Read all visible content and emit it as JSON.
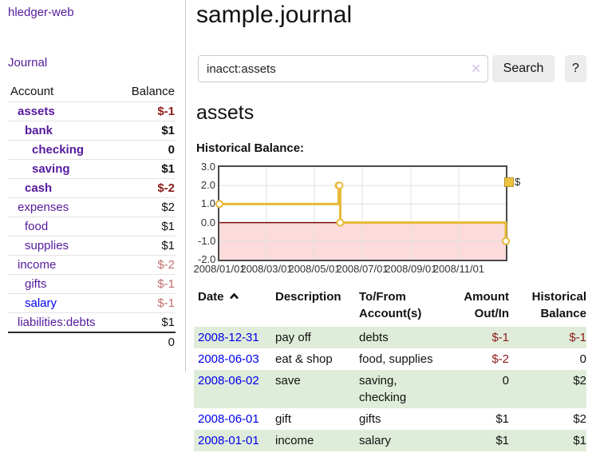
{
  "colors": {
    "link_purple": "#551a9b",
    "link_blue": "#0000ee",
    "negative_dark": "#8c1b1b",
    "negative_light": "#c06e6e",
    "row_green": "#dfecd9",
    "series_gold": "#e7ba37",
    "chart_negative_region": "#fbdbdb",
    "chart_zero_line": "#7d0b0b",
    "button_gray": "#ececec"
  },
  "sidebar": {
    "brand": "hledger-web",
    "journal_link": "Journal",
    "accounts_table": {
      "headers": {
        "account": "Account",
        "balance": "Balance"
      },
      "rows": [
        {
          "account": "assets",
          "indent": 1,
          "bold": true,
          "link": "purple",
          "balance": "$-1",
          "balance_style": "neg-dark"
        },
        {
          "account": "bank",
          "indent": 2,
          "bold": true,
          "link": "purple",
          "balance": "$1",
          "balance_style": ""
        },
        {
          "account": "checking",
          "indent": 3,
          "bold": true,
          "link": "purple",
          "balance": "0",
          "balance_style": ""
        },
        {
          "account": "saving",
          "indent": 3,
          "bold": true,
          "link": "purple",
          "balance": "$1",
          "balance_style": ""
        },
        {
          "account": "cash",
          "indent": 2,
          "bold": true,
          "link": "purple",
          "balance": "$-2",
          "balance_style": "neg-dark"
        },
        {
          "account": "expenses",
          "indent": 1,
          "bold": false,
          "link": "purple",
          "balance": "$2",
          "balance_style": ""
        },
        {
          "account": "food",
          "indent": 2,
          "bold": false,
          "link": "purple",
          "balance": "$1",
          "balance_style": ""
        },
        {
          "account": "supplies",
          "indent": 2,
          "bold": false,
          "link": "purple",
          "balance": "$1",
          "balance_style": ""
        },
        {
          "account": "income",
          "indent": 1,
          "bold": false,
          "link": "purple",
          "balance": "$-2",
          "balance_style": "neg-light"
        },
        {
          "account": "gifts",
          "indent": 2,
          "bold": false,
          "link": "purple",
          "balance": "$-1",
          "balance_style": "neg-light"
        },
        {
          "account": "salary",
          "indent": 2,
          "bold": false,
          "link": "blue",
          "balance": "$-1",
          "balance_style": "neg-light"
        },
        {
          "account": "liabilities:debts",
          "indent": 1,
          "bold": false,
          "link": "purple",
          "balance": "$1",
          "balance_style": ""
        }
      ],
      "total": "0"
    }
  },
  "main": {
    "title": "sample.journal",
    "search": {
      "value": "inacct:assets",
      "clear_icon": "✕",
      "search_button": "Search",
      "help_button": "?"
    },
    "account_heading": "assets",
    "chart_label": "Historical Balance:"
  },
  "chart_data": {
    "type": "line",
    "step": true,
    "title": "Historical Balance",
    "legend": [
      "$"
    ],
    "legend_position": "top-right",
    "grid": true,
    "series": [
      {
        "name": "$",
        "color": "#e7ba37",
        "points": [
          [
            "2008-01-01",
            1
          ],
          [
            "2008-06-01",
            2
          ],
          [
            "2008-06-02",
            2
          ],
          [
            "2008-06-03",
            0
          ],
          [
            "2008-12-31",
            -1
          ]
        ]
      }
    ],
    "x_range": [
      "2008-01-01",
      "2008-12-31"
    ],
    "x_ticks": [
      "2008/01/01",
      "2008/03/01",
      "2008/05/01",
      "2008/07/01",
      "2008/09/01",
      "2008/11/01"
    ],
    "y_ticks": [
      "3.0",
      "2.0",
      "1.0",
      "0.0",
      "-1.0",
      "-2.0"
    ],
    "ylim": [
      -2,
      3
    ]
  },
  "register_table": {
    "headers": {
      "date": "Date",
      "description": "Description",
      "tofrom": "To/From Account(s)",
      "amount": "Amount Out/In",
      "balance": "Historical Balance"
    },
    "rows": [
      {
        "date": "2008-12-31",
        "description": "pay off",
        "tofrom": "debts",
        "amount": "$-1",
        "amount_neg": true,
        "balance": "$-1",
        "balance_neg": true
      },
      {
        "date": "2008-06-03",
        "description": "eat & shop",
        "tofrom": "food, supplies",
        "amount": "$-2",
        "amount_neg": true,
        "balance": "0",
        "balance_neg": false
      },
      {
        "date": "2008-06-02",
        "description": "save",
        "tofrom": "saving, checking",
        "amount": "0",
        "amount_neg": false,
        "balance": "$2",
        "balance_neg": false
      },
      {
        "date": "2008-06-01",
        "description": "gift",
        "tofrom": "gifts",
        "amount": "$1",
        "amount_neg": false,
        "balance": "$2",
        "balance_neg": false
      },
      {
        "date": "2008-01-01",
        "description": "income",
        "tofrom": "salary",
        "amount": "$1",
        "amount_neg": false,
        "balance": "$1",
        "balance_neg": false
      }
    ]
  }
}
